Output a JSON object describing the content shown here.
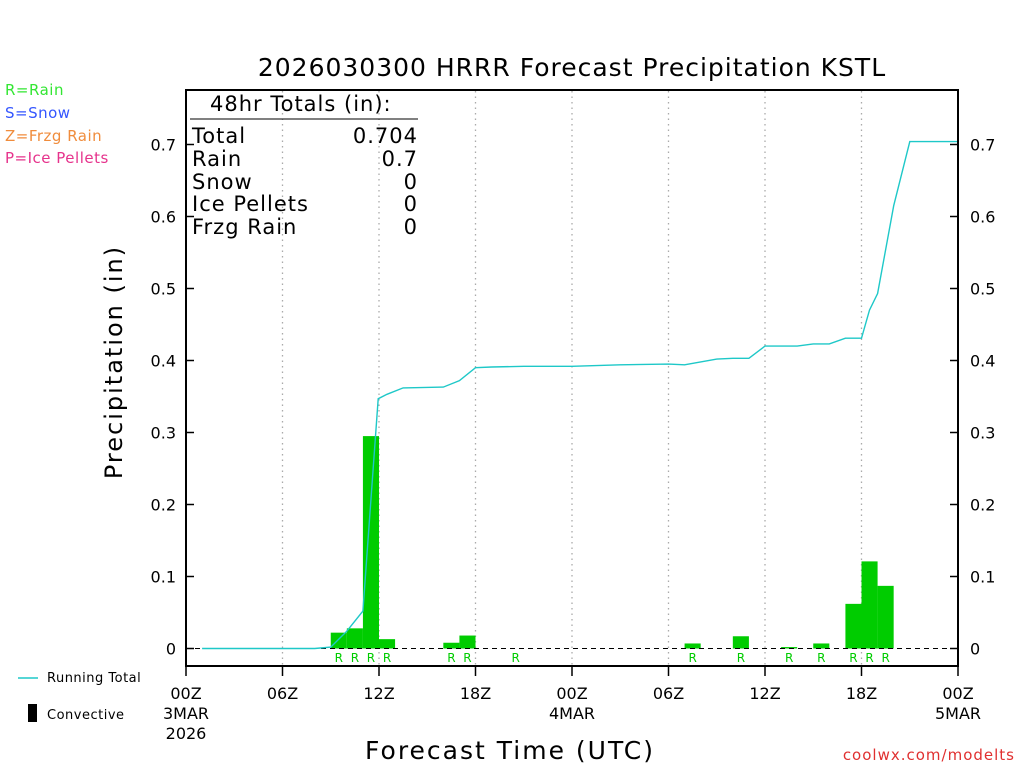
{
  "chart_data": {
    "type": "bar",
    "title": "2026030300 HRRR Forecast Precipitation KSTL",
    "xlabel": "Forecast Time (UTC)",
    "ylabel": "Precipitation (in)",
    "ylim": [
      0,
      0.78
    ],
    "xlim_hours": [
      0,
      48
    ],
    "yticks": [
      0,
      0.1,
      0.2,
      0.3,
      0.4,
      0.5,
      0.6,
      0.7
    ],
    "ytick_labels": [
      "0",
      "0.1",
      "0.2",
      "0.3",
      "0.4",
      "0.5",
      "0.6",
      "0.7"
    ],
    "grid": "vertical dotted lines at 06Z, 12Z and 18Z marks",
    "xticks": [
      {
        "hour": 0,
        "label": "00Z",
        "sub1": "3MAR",
        "sub2": "2026"
      },
      {
        "hour": 6,
        "label": "06Z",
        "sub1": "",
        "sub2": ""
      },
      {
        "hour": 12,
        "label": "12Z",
        "sub1": "",
        "sub2": ""
      },
      {
        "hour": 18,
        "label": "18Z",
        "sub1": "",
        "sub2": ""
      },
      {
        "hour": 24,
        "label": "00Z",
        "sub1": "4MAR",
        "sub2": ""
      },
      {
        "hour": 30,
        "label": "06Z",
        "sub1": "",
        "sub2": ""
      },
      {
        "hour": 36,
        "label": "12Z",
        "sub1": "",
        "sub2": ""
      },
      {
        "hour": 42,
        "label": "18Z",
        "sub1": "",
        "sub2": ""
      },
      {
        "hour": 48,
        "label": "00Z",
        "sub1": "5MAR",
        "sub2": ""
      }
    ],
    "bars": [
      {
        "hour": 10,
        "value": 0.022,
        "ptype": "R"
      },
      {
        "hour": 11,
        "value": 0.028,
        "ptype": "R"
      },
      {
        "hour": 12,
        "value": 0.295,
        "ptype": "R"
      },
      {
        "hour": 13,
        "value": 0.013,
        "ptype": "R"
      },
      {
        "hour": 17,
        "value": 0.008,
        "ptype": "R"
      },
      {
        "hour": 18,
        "value": 0.018,
        "ptype": "R"
      },
      {
        "hour": 21,
        "value": 0.0,
        "ptype": "R"
      },
      {
        "hour": 32,
        "value": 0.007,
        "ptype": "R"
      },
      {
        "hour": 35,
        "value": 0.017,
        "ptype": "R"
      },
      {
        "hour": 38,
        "value": 0.002,
        "ptype": "R"
      },
      {
        "hour": 40,
        "value": 0.007,
        "ptype": "R"
      },
      {
        "hour": 42,
        "value": 0.062,
        "ptype": "R"
      },
      {
        "hour": 43,
        "value": 0.121,
        "ptype": "R"
      },
      {
        "hour": 44,
        "value": 0.087,
        "ptype": "R"
      }
    ],
    "running_total": {
      "name": "Running Total",
      "x": [
        1,
        8,
        9,
        10,
        11,
        11.95,
        12.5,
        13.5,
        16,
        17,
        18,
        19,
        21,
        24,
        27,
        30,
        31,
        33,
        34,
        35,
        36,
        37,
        38,
        39,
        40,
        41,
        42,
        42.5,
        43,
        44,
        45,
        47,
        48
      ],
      "y": [
        0,
        0,
        0.002,
        0.024,
        0.052,
        0.347,
        0.353,
        0.362,
        0.363,
        0.372,
        0.39,
        0.391,
        0.392,
        0.392,
        0.394,
        0.395,
        0.394,
        0.402,
        0.403,
        0.403,
        0.42,
        0.42,
        0.42,
        0.423,
        0.423,
        0.431,
        0.431,
        0.47,
        0.493,
        0.615,
        0.704,
        0.704,
        0.704
      ]
    }
  },
  "totals": {
    "header": "48hr Totals (in):",
    "rows": [
      {
        "label": "Total",
        "value": "0.704"
      },
      {
        "label": "Rain",
        "value": "0.7"
      },
      {
        "label": "Snow",
        "value": "0"
      },
      {
        "label": "Ice Pellets",
        "value": "0"
      },
      {
        "label": "Frzg Rain",
        "value": "0"
      }
    ]
  },
  "ptype_key": [
    {
      "text": "R=Rain",
      "color": "#33e633"
    },
    {
      "text": "S=Snow",
      "color": "#3355ff"
    },
    {
      "text": "Z=Frzg Rain",
      "color": "#f08c3c"
    },
    {
      "text": "P=Ice Pellets",
      "color": "#e6338c"
    }
  ],
  "legend": {
    "running_total": "Running Total",
    "convective": "Convective"
  },
  "credit": "coolwx.com/modelts",
  "colors": {
    "bar": "#00cc00",
    "line": "#1ec8c8",
    "rain_mark": "#00cc00",
    "credit": "#e03030"
  }
}
